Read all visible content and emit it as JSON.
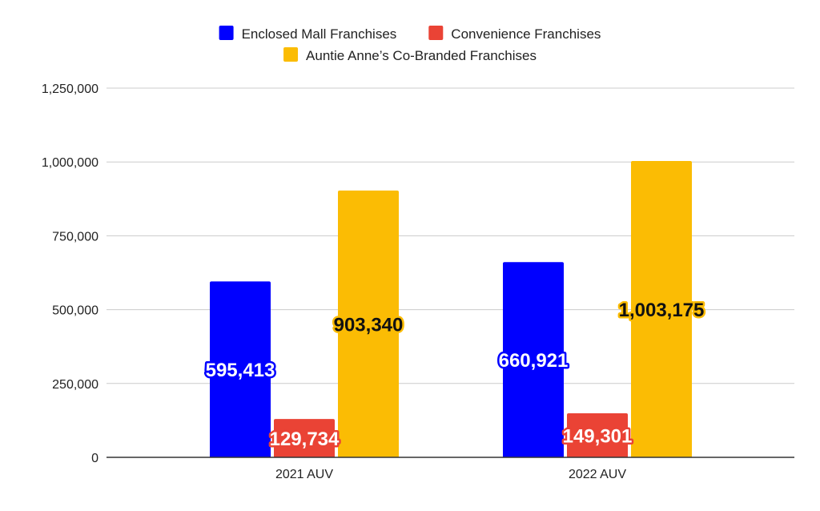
{
  "chart_data": {
    "type": "bar",
    "categories": [
      "2021 AUV",
      "2022 AUV"
    ],
    "series": [
      {
        "name": "Enclosed Mall Franchises",
        "values": [
          595413,
          660921
        ],
        "labels": [
          "595,413",
          "660,921"
        ],
        "color": "#0000ff",
        "label_fill": "#ffffff",
        "label_stroke": "#0000ff"
      },
      {
        "name": "Convenience Franchises",
        "values": [
          129734,
          149301
        ],
        "labels": [
          "129,734",
          "149,301"
        ],
        "color": "#ea4335",
        "label_fill": "#ffffff",
        "label_stroke": "#ea4335"
      },
      {
        "name": "Auntie Anne’s Co-Branded Franchises",
        "values": [
          903340,
          1003175
        ],
        "labels": [
          "903,340",
          "1,003,175"
        ],
        "color": "#fbbc04",
        "label_fill": "#111111",
        "label_stroke": "#fbbc04"
      }
    ],
    "y_ticks": [
      0,
      250000,
      500000,
      750000,
      1000000,
      1250000
    ],
    "y_tick_labels": [
      "0",
      "250,000",
      "500,000",
      "750,000",
      "1,000,000",
      "1,250,000"
    ],
    "ylim": [
      0,
      1250000
    ],
    "grid": true,
    "legend_position": "top",
    "title": "",
    "xlabel": "",
    "ylabel": ""
  },
  "colors": {
    "gridline": "#cccccc",
    "axis": "#333333",
    "text": "#222222"
  }
}
